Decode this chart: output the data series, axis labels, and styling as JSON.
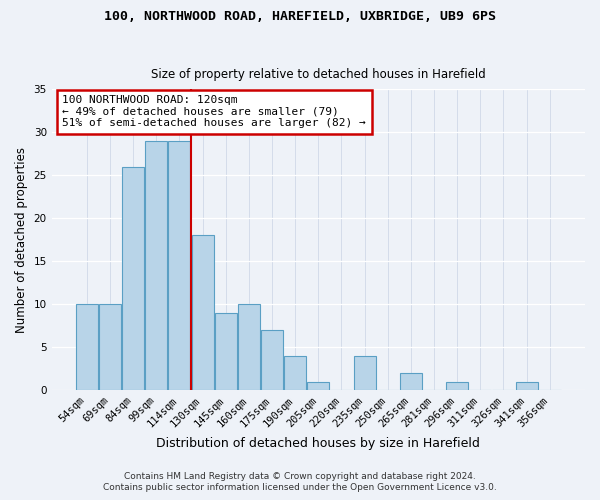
{
  "title1": "100, NORTHWOOD ROAD, HAREFIELD, UXBRIDGE, UB9 6PS",
  "title2": "Size of property relative to detached houses in Harefield",
  "xlabel": "Distribution of detached houses by size in Harefield",
  "ylabel": "Number of detached properties",
  "bar_labels": [
    "54sqm",
    "69sqm",
    "84sqm",
    "99sqm",
    "114sqm",
    "130sqm",
    "145sqm",
    "160sqm",
    "175sqm",
    "190sqm",
    "205sqm",
    "220sqm",
    "235sqm",
    "250sqm",
    "265sqm",
    "281sqm",
    "296sqm",
    "311sqm",
    "326sqm",
    "341sqm",
    "356sqm"
  ],
  "bar_values": [
    10,
    10,
    26,
    29,
    29,
    18,
    9,
    10,
    7,
    4,
    1,
    0,
    4,
    0,
    2,
    0,
    1,
    0,
    0,
    1,
    0
  ],
  "bar_color": "#b8d4e8",
  "bar_edgecolor": "#5a9fc4",
  "vline_x": 3.5,
  "vline_color": "#cc0000",
  "annotation_title": "100 NORTHWOOD ROAD: 120sqm",
  "annotation_line1": "← 49% of detached houses are smaller (79)",
  "annotation_line2": "51% of semi-detached houses are larger (82) →",
  "annotation_box_color": "#ffffff",
  "annotation_box_edgecolor": "#cc0000",
  "ylim": [
    0,
    35
  ],
  "yticks": [
    0,
    5,
    10,
    15,
    20,
    25,
    30,
    35
  ],
  "footer1": "Contains HM Land Registry data © Crown copyright and database right 2024.",
  "footer2": "Contains public sector information licensed under the Open Government Licence v3.0.",
  "background_color": "#eef2f8"
}
